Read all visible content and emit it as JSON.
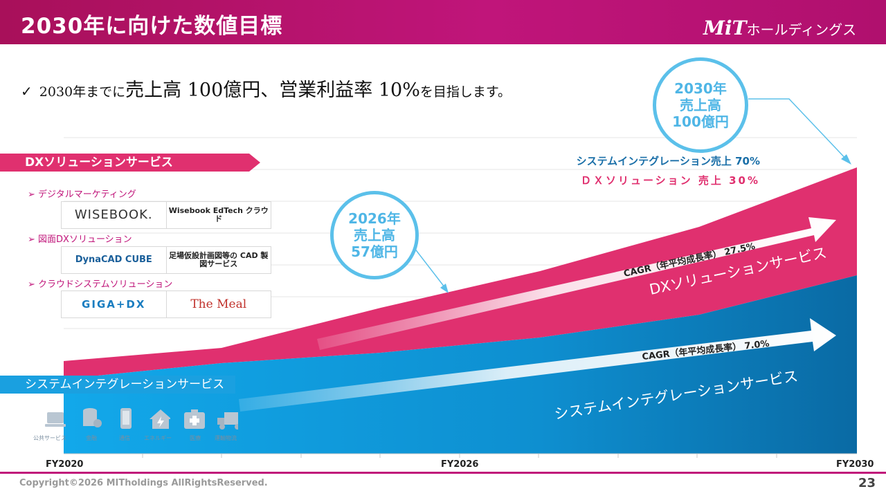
{
  "header": {
    "title": "2030年に向けた数値目標",
    "brand_main": "MiT",
    "brand_sub": "ホールディングス"
  },
  "goal": {
    "check": "✓",
    "prefix": "2030年までに",
    "sales": "売上高 100億円、",
    "margin": "営業利益率 10%",
    "suffix": "を目指します。"
  },
  "callout_2030": {
    "line1": "2030年",
    "line2": "売上高",
    "line3": "100億円"
  },
  "callout_2026": {
    "line1": "2026年",
    "line2": "売上高",
    "line3": "57億円"
  },
  "share": {
    "si": "システムインテグレーション売上 70%",
    "dx": "ＤＸソリューション 売上 30%"
  },
  "dx_section": {
    "label": "DXソリューションサービス",
    "groups": [
      {
        "title": "➢ デジタルマーケティング",
        "logos": [
          "WISEBOOK.",
          "Wisebook EdTech クラウド"
        ]
      },
      {
        "title": "➢ 図面DXソリューション",
        "logos": [
          "DynaCAD CUBE",
          "足場仮設計画図等の CAD 製図サービス"
        ]
      },
      {
        "title": "➢ クラウドシステムソリューション",
        "logos": [
          "GIGA+DX",
          "The Meal"
        ]
      }
    ]
  },
  "si_section": {
    "label": "システムインテグレーションサービス",
    "icons": [
      {
        "name": "laptop-icon",
        "label": "公共サービス"
      },
      {
        "name": "database-icon",
        "label": "金融"
      },
      {
        "name": "mobile-icon",
        "label": "通信"
      },
      {
        "name": "house-energy-icon",
        "label": "エネルギー"
      },
      {
        "name": "medical-icon",
        "label": "医療"
      },
      {
        "name": "truck-icon",
        "label": "運輸物流"
      }
    ]
  },
  "chart_data": {
    "type": "area",
    "x": [
      "FY2020",
      "FY2026",
      "FY2030"
    ],
    "xlabels": [
      "FY2020",
      "FY2026",
      "FY2030"
    ],
    "series": [
      {
        "name": "システムインテグレーションサービス",
        "cagr": "CAGR（年平均成長率） 7.0%"
      },
      {
        "name": "DXソリューションサービス",
        "cagr": "CAGR（年平均成長率） 27.5%"
      }
    ],
    "annotations": [
      "2026年 売上高 57億円",
      "2030年 売上高 100億円"
    ],
    "colors": {
      "si": "#1aa0e0",
      "si_dark": "#0a6fa8",
      "dx": "#e0306f",
      "grid": "#e6e6e6",
      "bubble": "#5bc0ea"
    },
    "grid": true
  },
  "footer": {
    "copyright": "Copyright©2026 MITholdings AllRightsReserved.",
    "page": "23"
  }
}
